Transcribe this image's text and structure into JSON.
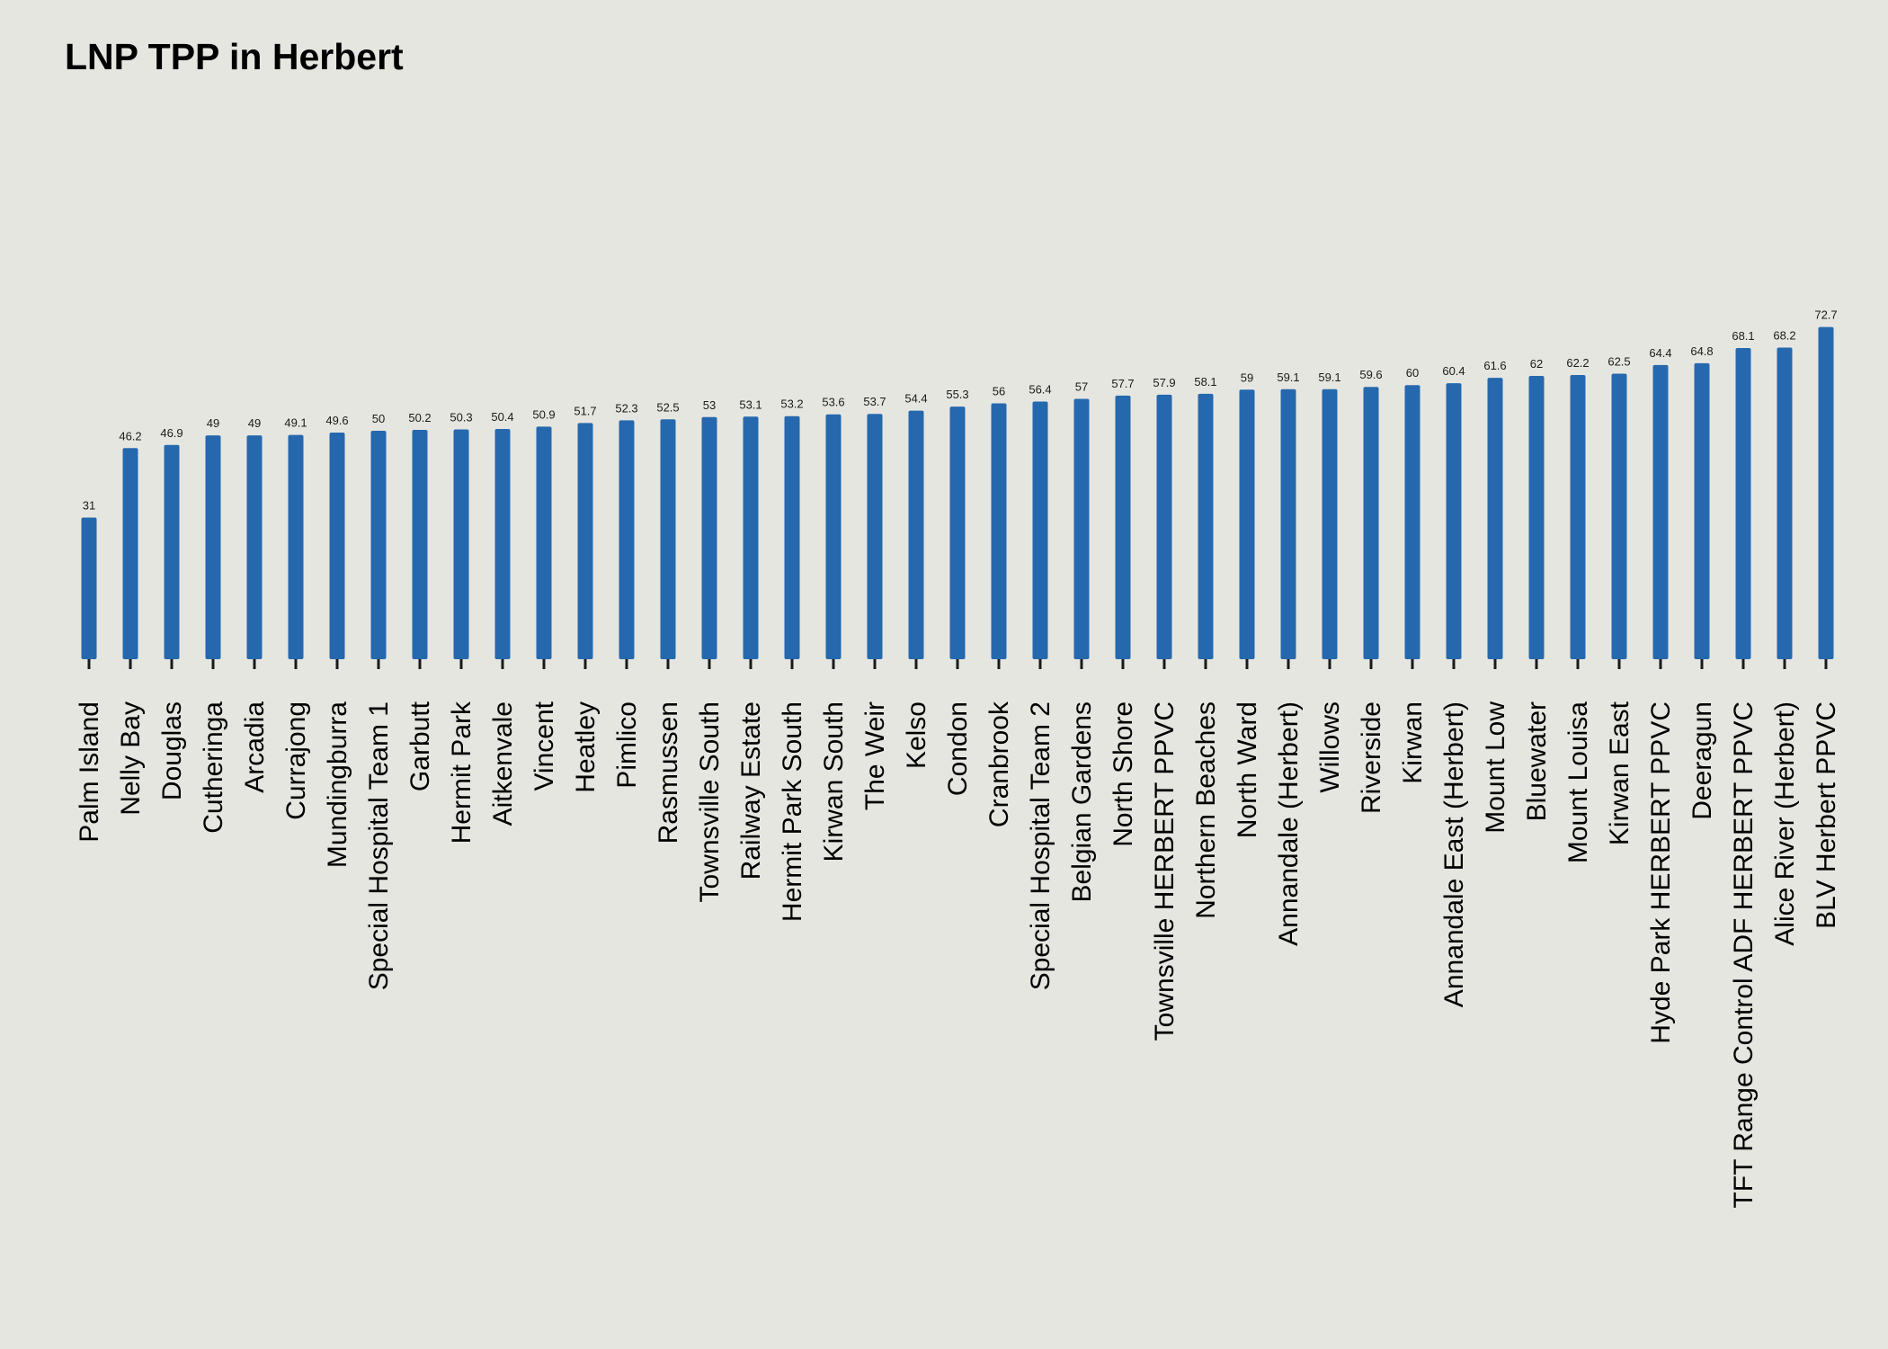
{
  "chart_data": {
    "type": "bar",
    "title": "LNP TPP in Herbert",
    "xlabel": "",
    "ylabel": "",
    "ylim": [
      0,
      100
    ],
    "grid": false,
    "bar_color": "#2568ae",
    "background_color": "#e6e6e1",
    "categories": [
      "Palm Island",
      "Nelly Bay",
      "Douglas",
      "Cutheringa",
      "Arcadia",
      "Currajong",
      "Mundingburra",
      "Special Hospital Team 1",
      "Garbutt",
      "Hermit Park",
      "Aitkenvale",
      "Vincent",
      "Heatley",
      "Pimlico",
      "Rasmussen",
      "Townsville South",
      "Railway Estate",
      "Hermit Park South",
      "Kirwan South",
      "The Weir",
      "Kelso",
      "Condon",
      "Cranbrook",
      "Special Hospital Team 2",
      "Belgian Gardens",
      "North Shore",
      "Townsville HERBERT PPVC",
      "Northern Beaches",
      "North Ward",
      "Annandale (Herbert)",
      "Willows",
      "Riverside",
      "Kirwan",
      "Annandale East (Herbert)",
      "Mount Low",
      "Bluewater",
      "Mount Louisa",
      "Kirwan East",
      "Hyde Park HERBERT PPVC",
      "Deeragun",
      "TFT Range Control ADF HERBERT PPVC",
      "Alice River (Herbert)",
      "BLV Herbert PPVC"
    ],
    "values": [
      31,
      46.2,
      46.9,
      49,
      49,
      49.1,
      49.6,
      50,
      50.2,
      50.3,
      50.4,
      50.9,
      51.7,
      52.3,
      52.5,
      53,
      53.1,
      53.2,
      53.6,
      53.7,
      54.4,
      55.3,
      56,
      56.4,
      57,
      57.7,
      57.9,
      58.1,
      59,
      59.1,
      59.1,
      59.6,
      60,
      60.4,
      61.6,
      62,
      62.2,
      62.5,
      64.4,
      64.8,
      68.1,
      68.2,
      72.7
    ]
  }
}
